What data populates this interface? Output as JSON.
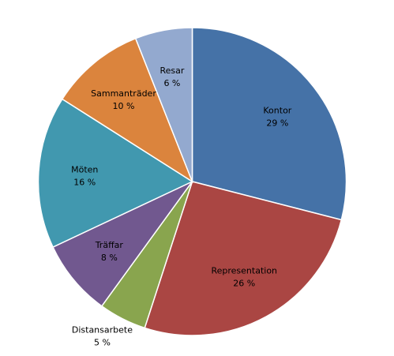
{
  "chart_data": {
    "type": "pie",
    "title": "",
    "slices": [
      {
        "name": "Kontor",
        "value": 29,
        "label": "29 %",
        "color": "#4572A7"
      },
      {
        "name": "Representation",
        "value": 26,
        "label": "26 %",
        "color": "#AA4643"
      },
      {
        "name": "Distansarbete",
        "value": 5,
        "label": "5 %",
        "color": "#89A54E"
      },
      {
        "name": "Träffar",
        "value": 8,
        "label": "8 %",
        "color": "#71588F"
      },
      {
        "name": "Möten",
        "value": 16,
        "label": "16 %",
        "color": "#4198AF"
      },
      {
        "name": "Sammanträder",
        "value": 10,
        "label": "10 %",
        "color": "#DB843D"
      },
      {
        "name": "Resar",
        "value": 6,
        "label": "6 %",
        "color": "#93A9CF"
      }
    ],
    "start": "12 o'clock",
    "direction": "clockwise",
    "legend": "none",
    "label_position": "inside"
  }
}
